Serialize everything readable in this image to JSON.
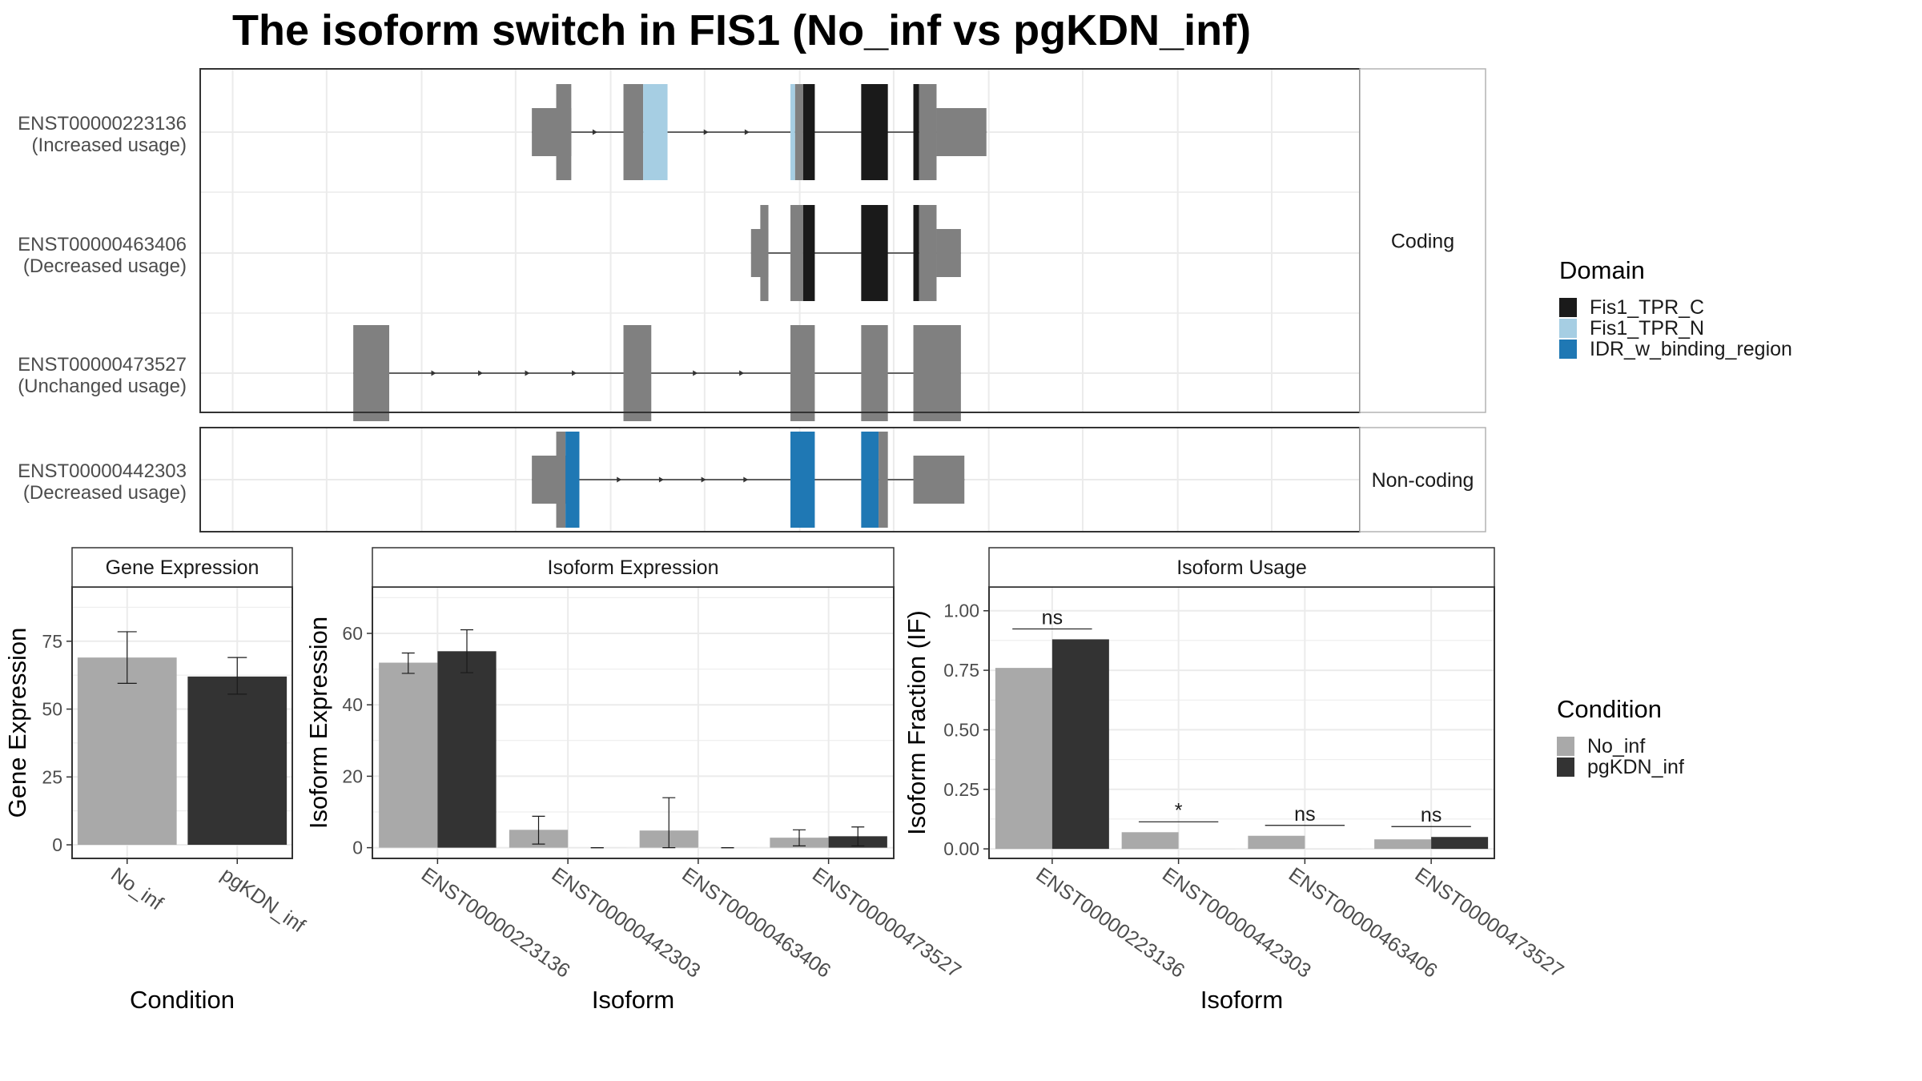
{
  "title": "The isoform switch in FIS1 (No_inf vs pgKDN_inf)",
  "colors": {
    "background": "#ffffff",
    "panel_border": "#333333",
    "grid": "#ebebeb",
    "exon": "#808080",
    "intron": "#333333",
    "strip_text": "#1a1a1a",
    "axis_text": "#4d4d4d"
  },
  "legends": {
    "domain": {
      "title": "Domain",
      "items": [
        {
          "label": "Fis1_TPR_C",
          "color": "#1a1a1a"
        },
        {
          "label": "Fis1_TPR_N",
          "color": "#a6cee3"
        },
        {
          "label": "IDR_w_binding_region",
          "color": "#1f78b4"
        }
      ]
    },
    "condition": {
      "title": "Condition",
      "items": [
        {
          "label": "No_inf",
          "color": "#a9a9a9"
        },
        {
          "label": "pgKDN_inf",
          "color": "#333333"
        }
      ]
    }
  },
  "chart_data": [
    {
      "type": "isoform_structure",
      "facets": [
        {
          "label": "Coding",
          "isoforms": [
            {
              "id": "ENST00000223136",
              "usage": "(Increased usage)",
              "exons": [
                {
                  "start": 0.286,
                  "end": 0.32,
                  "coding": false
                },
                {
                  "start": 0.307,
                  "end": 0.32,
                  "coding": true
                },
                {
                  "start": 0.365,
                  "end": 0.382,
                  "coding": true
                },
                {
                  "start": 0.382,
                  "end": 0.403,
                  "coding": true,
                  "domain": "Fis1_TPR_N"
                },
                {
                  "start": 0.509,
                  "end": 0.513,
                  "coding": true,
                  "domain": "Fis1_TPR_N"
                },
                {
                  "start": 0.513,
                  "end": 0.52,
                  "coding": true
                },
                {
                  "start": 0.52,
                  "end": 0.53,
                  "coding": true,
                  "domain": "Fis1_TPR_C"
                },
                {
                  "start": 0.57,
                  "end": 0.593,
                  "coding": true,
                  "domain": "Fis1_TPR_C"
                },
                {
                  "start": 0.615,
                  "end": 0.62,
                  "coding": true,
                  "domain": "Fis1_TPR_C"
                },
                {
                  "start": 0.62,
                  "end": 0.635,
                  "coding": true
                },
                {
                  "start": 0.635,
                  "end": 0.678,
                  "coding": false
                }
              ]
            },
            {
              "id": "ENST00000463406",
              "usage": "(Decreased usage)",
              "exons": [
                {
                  "start": 0.475,
                  "end": 0.49,
                  "coding": false
                },
                {
                  "start": 0.483,
                  "end": 0.49,
                  "coding": true
                },
                {
                  "start": 0.509,
                  "end": 0.52,
                  "coding": true
                },
                {
                  "start": 0.52,
                  "end": 0.53,
                  "coding": true,
                  "domain": "Fis1_TPR_C"
                },
                {
                  "start": 0.57,
                  "end": 0.593,
                  "coding": true,
                  "domain": "Fis1_TPR_C"
                },
                {
                  "start": 0.615,
                  "end": 0.62,
                  "coding": true,
                  "domain": "Fis1_TPR_C"
                },
                {
                  "start": 0.62,
                  "end": 0.635,
                  "coding": true
                },
                {
                  "start": 0.635,
                  "end": 0.656,
                  "coding": false
                }
              ]
            },
            {
              "id": "ENST00000473527",
              "usage": "(Unchanged usage)",
              "exons": [
                {
                  "start": 0.132,
                  "end": 0.163,
                  "coding": true
                },
                {
                  "start": 0.365,
                  "end": 0.389,
                  "coding": true
                },
                {
                  "start": 0.509,
                  "end": 0.53,
                  "coding": true
                },
                {
                  "start": 0.57,
                  "end": 0.593,
                  "coding": true
                },
                {
                  "start": 0.615,
                  "end": 0.656,
                  "coding": true
                }
              ]
            }
          ]
        },
        {
          "label": "Non-coding",
          "isoforms": [
            {
              "id": "ENST00000442303",
              "usage": "(Decreased usage)",
              "exons": [
                {
                  "start": 0.286,
                  "end": 0.327,
                  "coding": false
                },
                {
                  "start": 0.307,
                  "end": 0.315,
                  "coding": true
                },
                {
                  "start": 0.315,
                  "end": 0.327,
                  "coding": true,
                  "domain": "IDR_w_binding_region"
                },
                {
                  "start": 0.509,
                  "end": 0.53,
                  "coding": true,
                  "domain": "IDR_w_binding_region"
                },
                {
                  "start": 0.57,
                  "end": 0.585,
                  "coding": true,
                  "domain": "IDR_w_binding_region"
                },
                {
                  "start": 0.585,
                  "end": 0.593,
                  "coding": true
                },
                {
                  "start": 0.615,
                  "end": 0.659,
                  "coding": false
                }
              ]
            }
          ]
        }
      ]
    },
    {
      "type": "bar",
      "strip": "Gene Expression",
      "xlabel": "Condition",
      "ylabel": "Gene Expression",
      "categories": [
        "No_inf",
        "pgKDN_inf"
      ],
      "values": [
        69.0,
        62.0
      ],
      "errors": [
        [
          59.5,
          78.5
        ],
        [
          55.5,
          69.0
        ]
      ],
      "ylim": [
        -5,
        95
      ],
      "yticks": [
        0,
        25,
        50,
        75
      ]
    },
    {
      "type": "bar",
      "strip": "Isoform Expression",
      "xlabel": "Isoform",
      "ylabel": "Isoform Expression",
      "categories": [
        "ENST00000223136",
        "ENST00000442303",
        "ENST00000463406",
        "ENST00000473527"
      ],
      "series": [
        {
          "name": "No_inf",
          "values": [
            51.8,
            5.0,
            4.8,
            2.8
          ],
          "errors": [
            [
              48.8,
              54.5
            ],
            [
              1.0,
              8.8
            ],
            [
              0.0,
              14.0
            ],
            [
              0.5,
              5.0
            ]
          ]
        },
        {
          "name": "pgKDN_inf",
          "values": [
            55.0,
            0.0,
            0.0,
            3.2
          ],
          "errors": [
            [
              49.0,
              61.0
            ],
            [
              0.0,
              0.0
            ],
            [
              0.0,
              0.0
            ],
            [
              0.5,
              5.8
            ]
          ]
        }
      ],
      "ylim": [
        -3,
        73
      ],
      "yticks": [
        0,
        20,
        40,
        60
      ]
    },
    {
      "type": "bar",
      "strip": "Isoform Usage",
      "xlabel": "Isoform",
      "ylabel": "Isoform Fraction (IF)",
      "categories": [
        "ENST00000223136",
        "ENST00000442303",
        "ENST00000463406",
        "ENST00000473527"
      ],
      "series": [
        {
          "name": "No_inf",
          "values": [
            0.76,
            0.07,
            0.055,
            0.04
          ]
        },
        {
          "name": "pgKDN_inf",
          "values": [
            0.88,
            0.0,
            0.0,
            0.05
          ]
        }
      ],
      "significance": [
        "ns",
        "*",
        "ns",
        "ns"
      ],
      "ylim": [
        -0.04,
        1.1
      ],
      "yticks": [
        0.0,
        0.25,
        0.5,
        0.75,
        1.0
      ],
      "yticklabels": [
        "0.00",
        "0.25",
        "0.50",
        "0.75",
        "1.00"
      ]
    }
  ]
}
